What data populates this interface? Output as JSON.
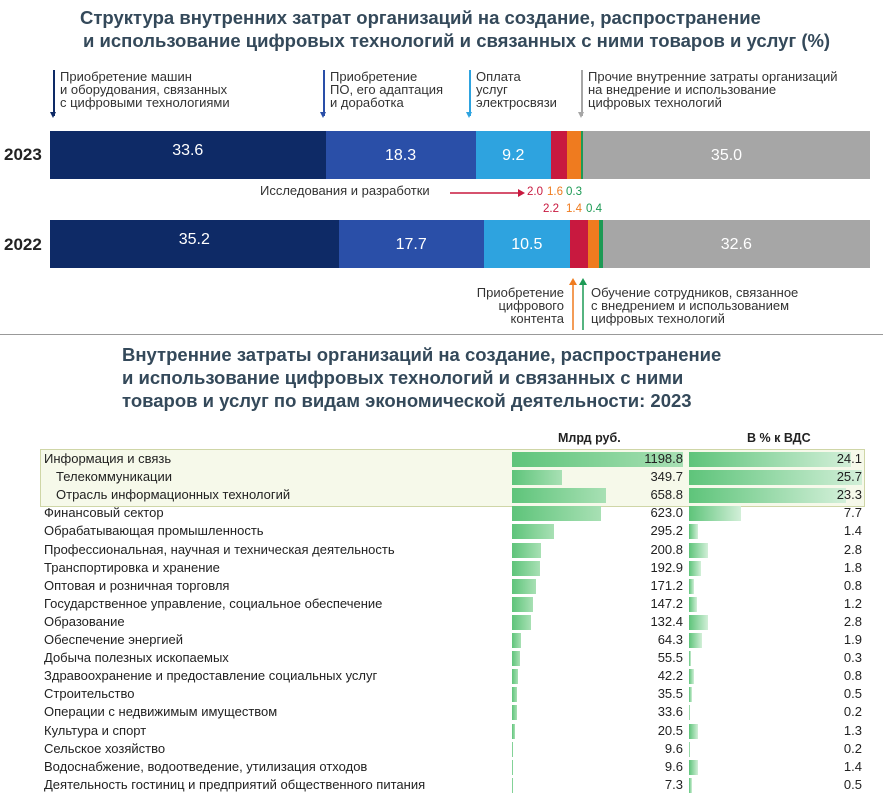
{
  "chart_data": [
    {
      "type": "bar",
      "title": "Структура внутренних затрат организаций на создание, распространение и использование цифровых технологий и связанных с ними товаров и услуг (%)",
      "orientation": "horizontal-stacked-100",
      "categories": [
        "2023",
        "2022"
      ],
      "series": [
        {
          "name": "Приобретение машин и оборудования, связанных с цифровыми технологиями",
          "values": [
            33.6,
            35.2
          ],
          "color": "#0e2a66"
        },
        {
          "name": "Приобретение ПО, его адаптация и доработка",
          "values": [
            18.3,
            17.7
          ],
          "color": "#2a4fa8"
        },
        {
          "name": "Оплата услуг электросвязи",
          "values": [
            9.2,
            10.5
          ],
          "color": "#2ea3df"
        },
        {
          "name": "Исследования и разработки",
          "values": [
            2.0,
            2.2
          ],
          "color": "#c8193f"
        },
        {
          "name": "Приобретение цифрового контента",
          "values": [
            1.6,
            1.4
          ],
          "color": "#ef7b1f"
        },
        {
          "name": "Обучение сотрудников, связанное с внедрением и использованием цифровых технологий",
          "values": [
            0.3,
            0.4
          ],
          "color": "#1d9a55"
        },
        {
          "name": "Прочие внутренние затраты организаций на внедрение и использование цифровых технологий",
          "values": [
            35.0,
            32.6
          ],
          "color": "#a6a6a6"
        }
      ],
      "grid": false
    },
    {
      "type": "table",
      "title": "Внутренние затраты организаций на создание, распространение и использование цифровых технологий и связанных с ними товаров и услуг по видам экономической деятельности: 2023",
      "columns": [
        "Млрд руб.",
        "В % к ВДС"
      ],
      "rows": [
        {
          "name": "Информация и связь",
          "rub": "1198.8",
          "pct": "24.1",
          "rub_v": 1198.8,
          "pct_v": 24.1,
          "group": true
        },
        {
          "name": "Телекоммуникации",
          "rub": "349.7",
          "pct": "25.7",
          "rub_v": 349.7,
          "pct_v": 25.7,
          "group": true,
          "indent": true
        },
        {
          "name": "Отрасль информационных технологий",
          "rub": "658.8",
          "pct": "23.3",
          "rub_v": 658.8,
          "pct_v": 23.3,
          "group": true,
          "indent": true
        },
        {
          "name": "Финансовый сектор",
          "rub": "623.0",
          "pct": "7.7",
          "rub_v": 623.0,
          "pct_v": 7.7
        },
        {
          "name": "Обрабатывающая промышленность",
          "rub": "295.2",
          "pct": "1.4",
          "rub_v": 295.2,
          "pct_v": 1.4
        },
        {
          "name": "Профессиональная, научная и техническая деятельность",
          "rub": "200.8",
          "pct": "2.8",
          "rub_v": 200.8,
          "pct_v": 2.8
        },
        {
          "name": "Транспортировка и хранение",
          "rub": "192.9",
          "pct": "1.8",
          "rub_v": 192.9,
          "pct_v": 1.8
        },
        {
          "name": "Оптовая и розничная торговля",
          "rub": "171.2",
          "pct": "0.8",
          "rub_v": 171.2,
          "pct_v": 0.8
        },
        {
          "name": "Государственное управление, социальное обеспечение",
          "rub": "147.2",
          "pct": "1.2",
          "rub_v": 147.2,
          "pct_v": 1.2
        },
        {
          "name": "Образование",
          "rub": "132.4",
          "pct": "2.8",
          "rub_v": 132.4,
          "pct_v": 2.8
        },
        {
          "name": "Обеспечение энергией",
          "rub": "64.3",
          "pct": "1.9",
          "rub_v": 64.3,
          "pct_v": 1.9
        },
        {
          "name": "Добыча полезных ископаемых",
          "rub": "55.5",
          "pct": "0.3",
          "rub_v": 55.5,
          "pct_v": 0.3
        },
        {
          "name": "Здравоохранение и предоставление социальных услуг",
          "rub": "42.2",
          "pct": "0.8",
          "rub_v": 42.2,
          "pct_v": 0.8
        },
        {
          "name": "Строительство",
          "rub": "35.5",
          "pct": "0.5",
          "rub_v": 35.5,
          "pct_v": 0.5
        },
        {
          "name": "Операции с недвижимым имуществом",
          "rub": "33.6",
          "pct": "0.2",
          "rub_v": 33.6,
          "pct_v": 0.2
        },
        {
          "name": "Культура и спорт",
          "rub": "20.5",
          "pct": "1.3",
          "rub_v": 20.5,
          "pct_v": 1.3
        },
        {
          "name": "Сельское хозяйство",
          "rub": "9.6",
          "pct": "0.2",
          "rub_v": 9.6,
          "pct_v": 0.2
        },
        {
          "name": "Водоснабжение, водоотведение, утилизация отходов",
          "rub": "9.6",
          "pct": "1.4",
          "rub_v": 9.6,
          "pct_v": 1.4
        },
        {
          "name": "Деятельность гостиниц и предприятий общественного питания",
          "rub": "7.3",
          "pct": "0.5",
          "rub_v": 7.3,
          "pct_v": 0.5
        }
      ]
    }
  ],
  "top": {
    "title_line1": "Структура внутренних затрат организаций на создание, распространение",
    "title_line2": "и использование цифровых технологий и связанных с ними товаров и услуг (%)",
    "ann_machines": [
      "Приобретение машин",
      "и оборудования, связанных",
      "с цифровыми технологиями"
    ],
    "ann_software": [
      "Приобретение",
      "ПО, его адаптация",
      "и доработка"
    ],
    "ann_telecom": [
      "Оплата",
      "услуг",
      "электросвязи"
    ],
    "ann_other": [
      "Прочие внутренние затраты организаций",
      "на внедрение и использование",
      "цифровых технологий"
    ],
    "ann_research": "Исследования и разработки",
    "ann_content": [
      "Приобретение",
      "цифрового",
      "контента"
    ],
    "ann_training": [
      "Обучение сотрудников, связанное",
      "с внедрением и использованием",
      "цифровых технологий"
    ],
    "small_2023": [
      "2.0",
      "1.6",
      "0.3"
    ],
    "small_2022": [
      "2.2",
      "1.4",
      "0.4"
    ]
  },
  "bottom": {
    "title_line1": "Внутренние затраты организаций на создание, распространение",
    "title_line2": "и использование цифровых технологий и связанных с ними",
    "title_line3": "товаров и услуг по видам экономической деятельности: 2023",
    "col_rub": "Млрд  руб.",
    "col_pct": "В % к ВДС"
  }
}
